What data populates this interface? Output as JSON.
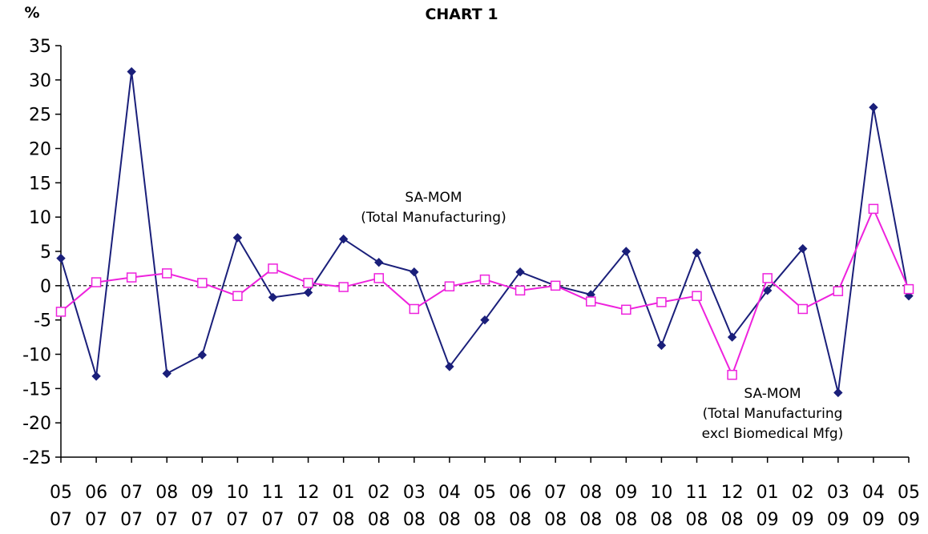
{
  "chart_data": {
    "type": "line",
    "title": "CHART 1",
    "ylabel": "%",
    "ylim": [
      -25,
      35
    ],
    "yticks": [
      35,
      30,
      25,
      20,
      15,
      10,
      5,
      0,
      -5,
      -10,
      -15,
      -20,
      -25
    ],
    "categories": [
      [
        "05",
        "07"
      ],
      [
        "06",
        "07"
      ],
      [
        "07",
        "07"
      ],
      [
        "08",
        "07"
      ],
      [
        "09",
        "07"
      ],
      [
        "10",
        "07"
      ],
      [
        "11",
        "07"
      ],
      [
        "12",
        "07"
      ],
      [
        "01",
        "08"
      ],
      [
        "02",
        "08"
      ],
      [
        "03",
        "08"
      ],
      [
        "04",
        "08"
      ],
      [
        "05",
        "08"
      ],
      [
        "06",
        "08"
      ],
      [
        "07",
        "08"
      ],
      [
        "08",
        "08"
      ],
      [
        "09",
        "08"
      ],
      [
        "10",
        "08"
      ],
      [
        "11",
        "08"
      ],
      [
        "12",
        "08"
      ],
      [
        "01",
        "09"
      ],
      [
        "02",
        "09"
      ],
      [
        "03",
        "09"
      ],
      [
        "04",
        "09"
      ],
      [
        "05",
        "09"
      ]
    ],
    "series": [
      {
        "color": "#1a1f7a",
        "marker": "diamond",
        "values": [
          4.0,
          -13.2,
          31.2,
          -12.8,
          -10.1,
          7.0,
          -1.7,
          -1.0,
          6.8,
          3.4,
          2.0,
          -11.8,
          -5.0,
          2.0,
          0.0,
          -1.3,
          5.0,
          -8.7,
          4.8,
          -7.5,
          -0.7,
          5.4,
          -15.6,
          26.0,
          -1.5
        ]
      },
      {
        "color": "#ee22dd",
        "marker": "square-open",
        "values": [
          -3.8,
          0.5,
          1.2,
          1.8,
          0.4,
          -1.5,
          2.5,
          0.4,
          -0.2,
          1.1,
          -3.4,
          -0.1,
          0.9,
          -0.7,
          0.0,
          -2.3,
          -3.5,
          -2.4,
          -1.5,
          -13.0,
          1.1,
          -3.4,
          -0.8,
          11.2,
          -0.5
        ]
      }
    ],
    "zero_line": "dashed",
    "annotations": [
      {
        "lines": [
          "SA-MOM",
          "(Total Manufacturing)"
        ]
      },
      {
        "lines": [
          "SA-MOM",
          "(Total Manufacturing",
          "excl Biomedical Mfg)"
        ]
      }
    ]
  }
}
